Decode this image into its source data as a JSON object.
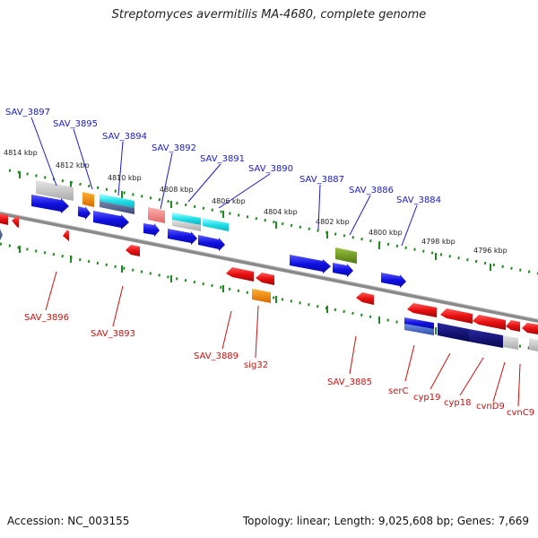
{
  "title": "Streptomyces avermitilis MA-4680, complete genome",
  "footer": {
    "accession": "Accession: NC_003155",
    "summary": "Topology: linear; Length: 9,025,608 bp; Genes: 7,669"
  },
  "scale_labels": [
    "4814 kbp",
    "4812 kbp",
    "4810 kbp",
    "4808 kbp",
    "4806 kbp",
    "4804 kbp",
    "4802 kbp",
    "4800 kbp",
    "4798 kbp",
    "4796 kbp"
  ],
  "colors": {
    "forward_gene": "#1a1acc",
    "reverse_gene": "#e01010",
    "tick": "#228822",
    "backbone": "#808080",
    "top_label": "#1a1acc",
    "bottom_label": "#cc1010"
  },
  "top_labels": [
    "SAV_3897",
    "SAV_3895",
    "SAV_3894",
    "SAV_3892",
    "SAV_3891",
    "SAV_3890",
    "SAV_3887",
    "SAV_3886",
    "SAV_3884"
  ],
  "bottom_labels": [
    "SAV_3896",
    "SAV_3893",
    "SAV_3889",
    "sig32",
    "SAV_3885",
    "serC",
    "cyp19",
    "cyp18",
    "cvnD9",
    "cvnC9"
  ]
}
